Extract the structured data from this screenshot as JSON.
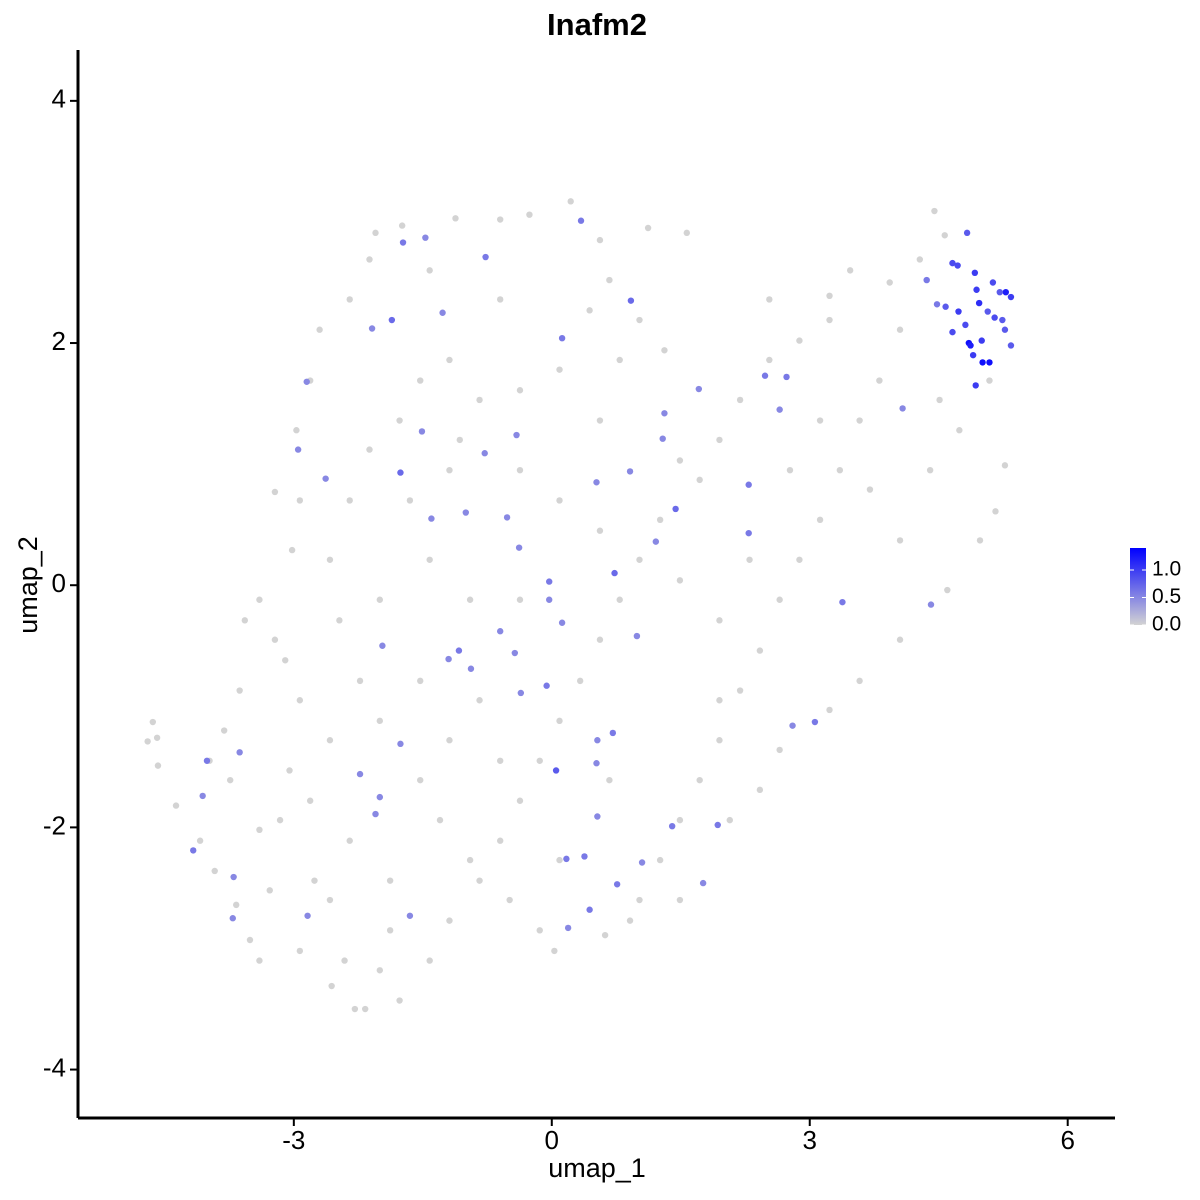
{
  "chart_data": {
    "type": "scatter",
    "title": "Inafm2",
    "x_label": "umap_1",
    "y_label": "umap_2",
    "xlim": [
      -5.51,
      6.55
    ],
    "ylim": [
      -4.4,
      4.42
    ],
    "xticks": [
      -3,
      0,
      3,
      6
    ],
    "yticks": [
      -4,
      -2,
      0,
      2,
      4
    ],
    "color_low": "#D3D3D3",
    "color_high": "#0000FF",
    "colorbar": {
      "lim": [
        0,
        1.4
      ],
      "ticks": [
        {
          "value": 0,
          "label": "0.0"
        },
        {
          "value": 0.5,
          "label": "0.5"
        },
        {
          "value": 1,
          "label": "1.0"
        }
      ]
    },
    "x": [
      -4.7,
      -4.59,
      -4.64,
      -4.58,
      -4.37,
      -4.09,
      -3.98,
      -3.81,
      -3.92,
      -3.67,
      -3.51,
      -3.4,
      -3.28,
      -3.16,
      -3.05,
      -2.93,
      -3.22,
      -3.4,
      -3.57,
      -3.02,
      -2.93,
      -3.22,
      -2.97,
      -2.81,
      -2.7,
      -2.35,
      -2.12,
      -2.05,
      -1.74,
      -1.42,
      -1.12,
      -0.6,
      -0.26,
      0.22,
      0.56,
      1.12,
      1.57,
      0.67,
      0.44,
      1.02,
      1.31,
      0.79,
      0.09,
      -0.37,
      -0.84,
      -1.19,
      -1.53,
      -1.77,
      -2.12,
      -2.35,
      -2.58,
      -2.47,
      -2.23,
      -2.0,
      -2.58,
      -2.81,
      -2.35,
      -2.58,
      -2.41,
      -2.56,
      -2.29,
      -2.17,
      -2.0,
      -1.88,
      -1.42,
      -1.19,
      -0.84,
      -0.6,
      -0.37,
      -0.14,
      0.09,
      0.33,
      0.56,
      0.79,
      1.02,
      1.26,
      1.72,
      1.95,
      2.19,
      2.53,
      2.88,
      3.23,
      3.47,
      3.93,
      4.28,
      4.45,
      4.57,
      4.05,
      3.81,
      3.58,
      3.35,
      3.12,
      2.88,
      2.65,
      2.42,
      2.19,
      1.95,
      1.72,
      1.49,
      1.26,
      1.02,
      0.62,
      0.03,
      -0.14,
      -0.49,
      -0.95,
      -1.3,
      -1.53,
      -1.19,
      -0.84,
      -0.95,
      -1.42,
      -1.65,
      -1.19,
      -0.37,
      0.09,
      0.56,
      1.49,
      1.95,
      2.3,
      2.77,
      3.7,
      4.4,
      4.74,
      5.09,
      5.27,
      5.16,
      4.98,
      4.6,
      4.05,
      3.58,
      3.23,
      2.65,
      2.42,
      2.07,
      1.49,
      0.91,
      -3.4,
      -3.74,
      -2.93,
      -1.77,
      -2.76,
      -0.6,
      -1.07,
      -2.0,
      -1.53,
      -3.63,
      0.56,
      1.49,
      3.12,
      2.53,
      3.23,
      4.51,
      4.05,
      1.95,
      0.09,
      -0.37,
      -1.88,
      -3.1,
      -0.6,
      0.67,
      0.34,
      -0.77,
      -1.47,
      -1.73,
      0.92,
      -1.27,
      -1.86,
      -2.09,
      0.12,
      -2.85,
      2.48,
      2.73,
      1.71,
      2.65,
      4.08,
      1.31,
      -1.51,
      -0.41,
      1.29,
      -2.95,
      -1.76,
      -0.78,
      0.91,
      0.52,
      -2.63,
      2.29,
      1.44,
      -1.0,
      -0.52,
      -1.4,
      1.21,
      2.29,
      -0.38,
      0.73,
      -0.03,
      -0.03,
      3.38,
      4.41,
      0.12,
      0.99,
      -1.97,
      -1.08,
      -1.2,
      -0.94,
      -0.6,
      -0.43,
      -0.06,
      -0.36,
      3.06,
      2.8,
      0.53,
      0.71,
      -1.76,
      -3.63,
      -4.01,
      0.05,
      0.52,
      -2.23,
      -4.06,
      -2.0,
      0.53,
      1.4,
      1.93,
      -2.05,
      -4.17,
      0.38,
      0.17,
      1.05,
      -3.7,
      0.76,
      0.44,
      0.19,
      -1.65,
      -2.84,
      -3.71,
      1.76,
      5.28,
      5.34,
      4.83,
      4.66,
      4.72,
      4.92,
      5.13,
      4.94,
      5.21,
      4.73,
      4.97,
      5.07,
      5.15,
      5.24,
      4.85,
      4.87,
      5.01,
      5.09,
      4.93,
      5.34,
      4.66,
      4.81,
      4.58,
      4.9,
      4.36,
      4.48,
      5.0,
      5.27
    ],
    "y": [
      -1.29,
      -1.26,
      -1.13,
      -1.49,
      -1.82,
      -2.11,
      -1.45,
      -1.2,
      -2.36,
      -2.64,
      -2.93,
      -3.1,
      -2.52,
      -1.94,
      -1.53,
      -0.95,
      -0.45,
      -0.12,
      -0.29,
      0.29,
      0.7,
      0.77,
      1.28,
      1.69,
      2.11,
      2.36,
      2.69,
      2.91,
      2.97,
      2.6,
      3.03,
      3.02,
      3.06,
      3.17,
      2.85,
      2.95,
      2.91,
      2.52,
      2.27,
      2.19,
      1.94,
      1.86,
      1.78,
      1.61,
      1.53,
      1.86,
      1.69,
      1.36,
      1.12,
      0.7,
      0.21,
      -0.29,
      -0.79,
      -1.12,
      -1.28,
      -1.78,
      -2.11,
      -2.6,
      -3.1,
      -3.31,
      -3.5,
      -3.5,
      -3.18,
      -2.85,
      -3.1,
      -2.77,
      -2.44,
      -2.11,
      -1.78,
      -1.45,
      -1.12,
      -0.79,
      -0.45,
      -0.12,
      0.21,
      0.54,
      0.87,
      1.2,
      1.53,
      1.86,
      2.02,
      2.39,
      2.6,
      2.5,
      2.69,
      3.09,
      2.89,
      2.11,
      1.69,
      1.36,
      0.95,
      0.54,
      0.21,
      -0.12,
      -0.54,
      -0.87,
      -1.28,
      -1.61,
      -1.94,
      -2.27,
      -2.6,
      -2.89,
      -3.02,
      -2.85,
      -2.6,
      -2.27,
      -1.94,
      -1.61,
      -1.28,
      -0.95,
      -0.12,
      0.21,
      0.7,
      0.95,
      0.95,
      0.7,
      0.45,
      0.04,
      -0.29,
      0.21,
      0.95,
      0.79,
      0.95,
      1.28,
      1.69,
      0.99,
      0.61,
      0.37,
      -0.04,
      -0.45,
      -0.79,
      -1.03,
      -1.36,
      -1.69,
      -1.94,
      -2.6,
      -2.77,
      -2.02,
      -1.61,
      -3.02,
      -3.43,
      -2.44,
      2.36,
      1.2,
      -0.12,
      -0.79,
      -0.87,
      1.36,
      1.03,
      1.36,
      2.36,
      2.19,
      1.53,
      0.37,
      -0.95,
      -2.27,
      -0.12,
      -2.44,
      -0.62,
      -1.45,
      -1.61,
      3.01,
      2.71,
      2.87,
      2.83,
      2.35,
      2.25,
      2.19,
      2.12,
      2.04,
      1.68,
      1.73,
      1.72,
      1.62,
      1.45,
      1.46,
      1.42,
      1.27,
      1.24,
      1.21,
      1.12,
      0.93,
      1.09,
      0.94,
      0.85,
      0.88,
      0.83,
      0.63,
      0.6,
      0.56,
      0.55,
      0.36,
      0.43,
      0.31,
      0.1,
      0.03,
      -0.12,
      -0.14,
      -0.16,
      -0.31,
      -0.42,
      -0.5,
      -0.54,
      -0.61,
      -0.69,
      -0.38,
      -0.56,
      -0.83,
      -0.89,
      -1.13,
      -1.16,
      -1.28,
      -1.22,
      -1.31,
      -1.38,
      -1.45,
      -1.53,
      -1.47,
      -1.56,
      -1.74,
      -1.75,
      -1.91,
      -1.99,
      -1.98,
      -1.89,
      -2.19,
      -2.24,
      -2.26,
      -2.29,
      -2.41,
      -2.47,
      -2.68,
      -2.83,
      -2.73,
      -2.73,
      -2.75,
      -2.46,
      2.42,
      2.38,
      2.91,
      2.66,
      2.64,
      2.58,
      2.5,
      2.44,
      2.42,
      2.26,
      2.33,
      2.26,
      2.21,
      2.19,
      2.0,
      1.98,
      1.84,
      1.84,
      1.65,
      1.98,
      2.09,
      2.15,
      2.3,
      1.9,
      2.52,
      2.32,
      2.02,
      2.11
    ],
    "values": [
      0,
      0,
      0,
      0,
      0,
      0,
      0,
      0,
      0,
      0,
      0,
      0,
      0,
      0,
      0,
      0,
      0,
      0,
      0,
      0,
      0,
      0,
      0,
      0,
      0,
      0,
      0,
      0,
      0,
      0,
      0,
      0,
      0,
      0,
      0,
      0,
      0,
      0,
      0,
      0,
      0,
      0,
      0,
      0,
      0,
      0,
      0,
      0,
      0,
      0,
      0,
      0,
      0,
      0,
      0,
      0,
      0,
      0,
      0,
      0,
      0,
      0,
      0,
      0,
      0,
      0,
      0,
      0,
      0,
      0,
      0,
      0,
      0,
      0,
      0,
      0,
      0,
      0,
      0,
      0,
      0,
      0,
      0,
      0,
      0,
      0,
      0,
      0,
      0,
      0,
      0,
      0,
      0,
      0,
      0,
      0,
      0,
      0,
      0,
      0,
      0,
      0,
      0,
      0,
      0,
      0,
      0,
      0,
      0,
      0,
      0,
      0,
      0,
      0,
      0,
      0,
      0,
      0,
      0,
      0,
      0,
      0,
      0,
      0,
      0,
      0,
      0,
      0,
      0,
      0,
      0,
      0,
      0,
      0,
      0,
      0,
      0,
      0,
      0,
      0,
      0,
      0,
      0,
      0,
      0,
      0,
      0,
      0,
      0,
      0,
      0,
      0,
      0,
      0,
      0,
      0,
      0,
      0,
      0,
      0,
      0,
      0.6,
      0.6,
      0.5,
      0.6,
      0.7,
      0.5,
      0.7,
      0.5,
      0.6,
      0.5,
      0.6,
      0.6,
      0.5,
      0.5,
      0.5,
      0.5,
      0.5,
      0.5,
      0.5,
      0.5,
      0.7,
      0.5,
      0.5,
      0.5,
      0.5,
      0.6,
      0.7,
      0.5,
      0.5,
      0.5,
      0.5,
      0.6,
      0.5,
      0.7,
      0.6,
      0.5,
      0.6,
      0.5,
      0.5,
      0.5,
      0.5,
      0.6,
      0.5,
      0.5,
      0.5,
      0.5,
      0.6,
      0.5,
      0.6,
      0.5,
      0.5,
      0.6,
      0.5,
      0.5,
      0.6,
      0.8,
      0.5,
      0.5,
      0.5,
      0.5,
      0.5,
      0.6,
      0.6,
      0.5,
      0.6,
      0.6,
      0.6,
      0.5,
      0.5,
      0.6,
      0.6,
      0.5,
      0.5,
      0.5,
      0.5,
      0.5,
      1.2,
      1.0,
      0.8,
      0.9,
      0.9,
      1.0,
      0.9,
      1.0,
      0.8,
      1.0,
      1.1,
      0.8,
      0.9,
      0.8,
      1.3,
      1.2,
      1.3,
      1.3,
      1.0,
      0.8,
      0.9,
      0.9,
      0.8,
      1.0,
      0.6,
      0.6,
      1.0,
      0.8
    ]
  }
}
